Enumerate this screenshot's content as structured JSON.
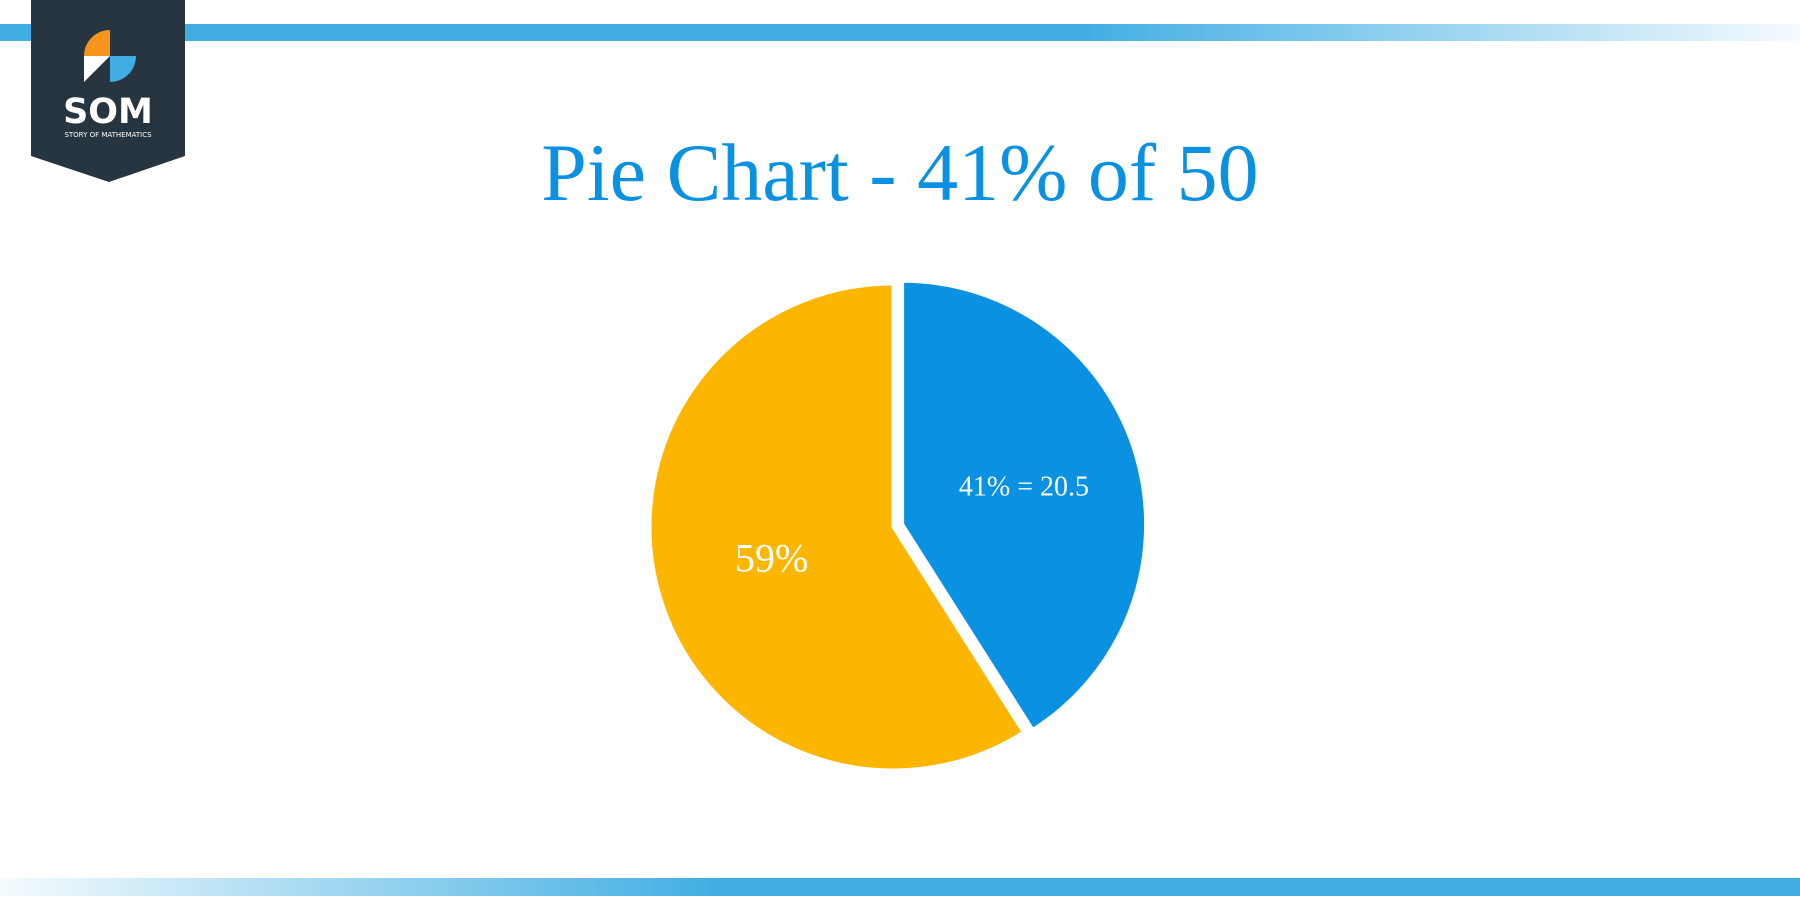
{
  "logo": {
    "name": "SOM",
    "tagline": "STORY OF MATHEMATICS"
  },
  "chart_data": {
    "type": "pie",
    "title": "Pie Chart - 41% of 50",
    "values": [
      41,
      59
    ],
    "value_labels": [
      "41% = 20.5",
      "59%"
    ],
    "colors": [
      "#0a91e2",
      "#fcb600"
    ],
    "title_color": "#0a91e2"
  }
}
